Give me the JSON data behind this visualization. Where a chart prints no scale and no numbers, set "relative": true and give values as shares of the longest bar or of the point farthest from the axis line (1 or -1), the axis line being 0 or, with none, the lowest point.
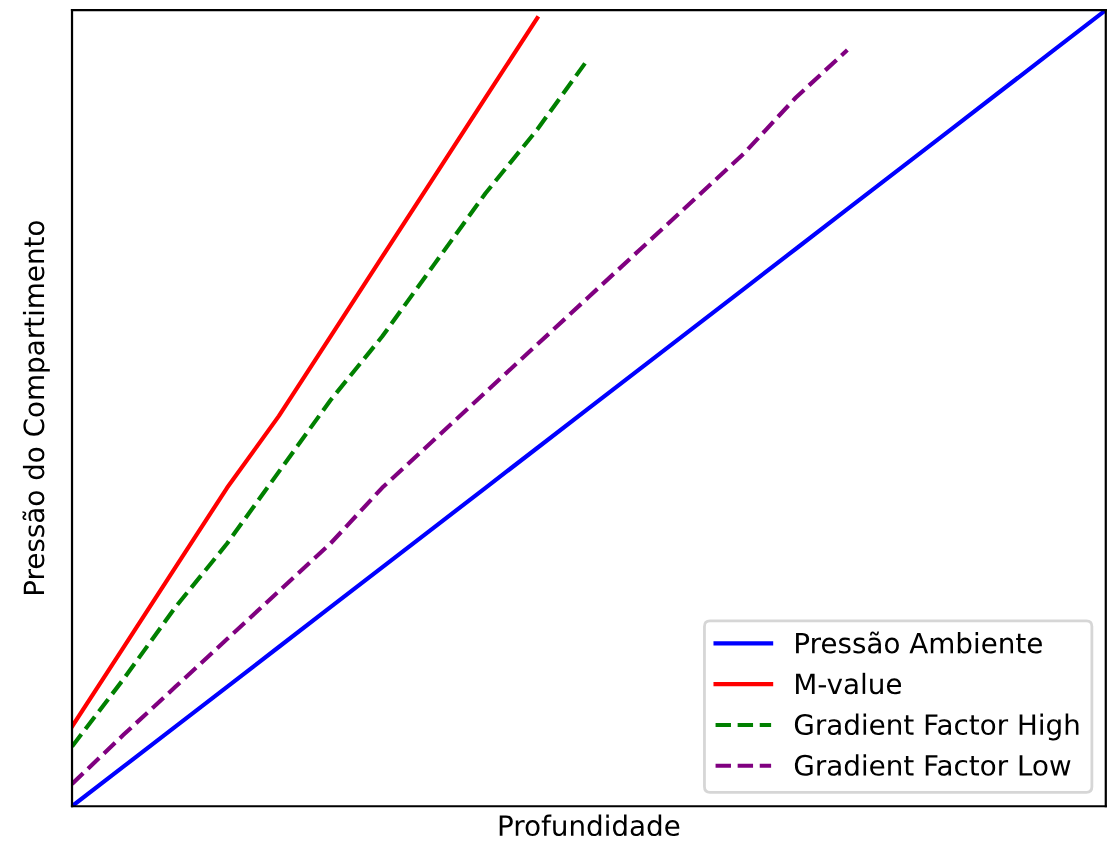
{
  "chart_data": {
    "type": "line",
    "relative": true,
    "xlabel": "Profundidade",
    "ylabel": "Pressão do Compartimento",
    "legend": "bottom right",
    "categories": [
      null,
      null,
      null,
      null,
      null,
      null,
      null,
      null,
      null,
      null,
      null,
      null,
      null,
      null,
      null,
      null,
      null,
      null,
      null,
      null,
      null
    ],
    "series": [
      {
        "name": "Pressão Ambiente",
        "color": "#0000ff",
        "line_style": "solid",
        "values": [
          0,
          0.05,
          0.1,
          0.15,
          0.2,
          0.25,
          0.3,
          0.35,
          0.4,
          0.45,
          0.5,
          0.55,
          0.6,
          0.65,
          0.7,
          0.75,
          0.8,
          0.85,
          0.9,
          0.95,
          1.0
        ]
      },
      {
        "name": "M-value",
        "color": "#ff0000",
        "line_style": "solid",
        "values": [
          0.1,
          0.2,
          0.3,
          0.4,
          0.49,
          0.59,
          0.69,
          0.79,
          0.89,
          0.99,
          null,
          null,
          null,
          null,
          null,
          null,
          null,
          null,
          null,
          null,
          null
        ]
      },
      {
        "name": "Gradient Factor High",
        "color": "#008000",
        "line_style": "dashed",
        "values": [
          0.075,
          0.16,
          0.25,
          0.33,
          0.42,
          0.51,
          0.59,
          0.68,
          0.77,
          0.85,
          0.94,
          null,
          null,
          null,
          null,
          null,
          null,
          null,
          null,
          null,
          null
        ]
      },
      {
        "name": "Gradient Factor Low",
        "color": "#800080",
        "line_style": "dashed",
        "values": [
          0.028,
          0.09,
          0.15,
          0.21,
          0.27,
          0.33,
          0.4,
          0.46,
          0.52,
          0.58,
          0.64,
          0.7,
          0.76,
          0.82,
          0.89,
          0.95,
          null,
          null,
          null,
          null,
          null
        ]
      }
    ]
  }
}
